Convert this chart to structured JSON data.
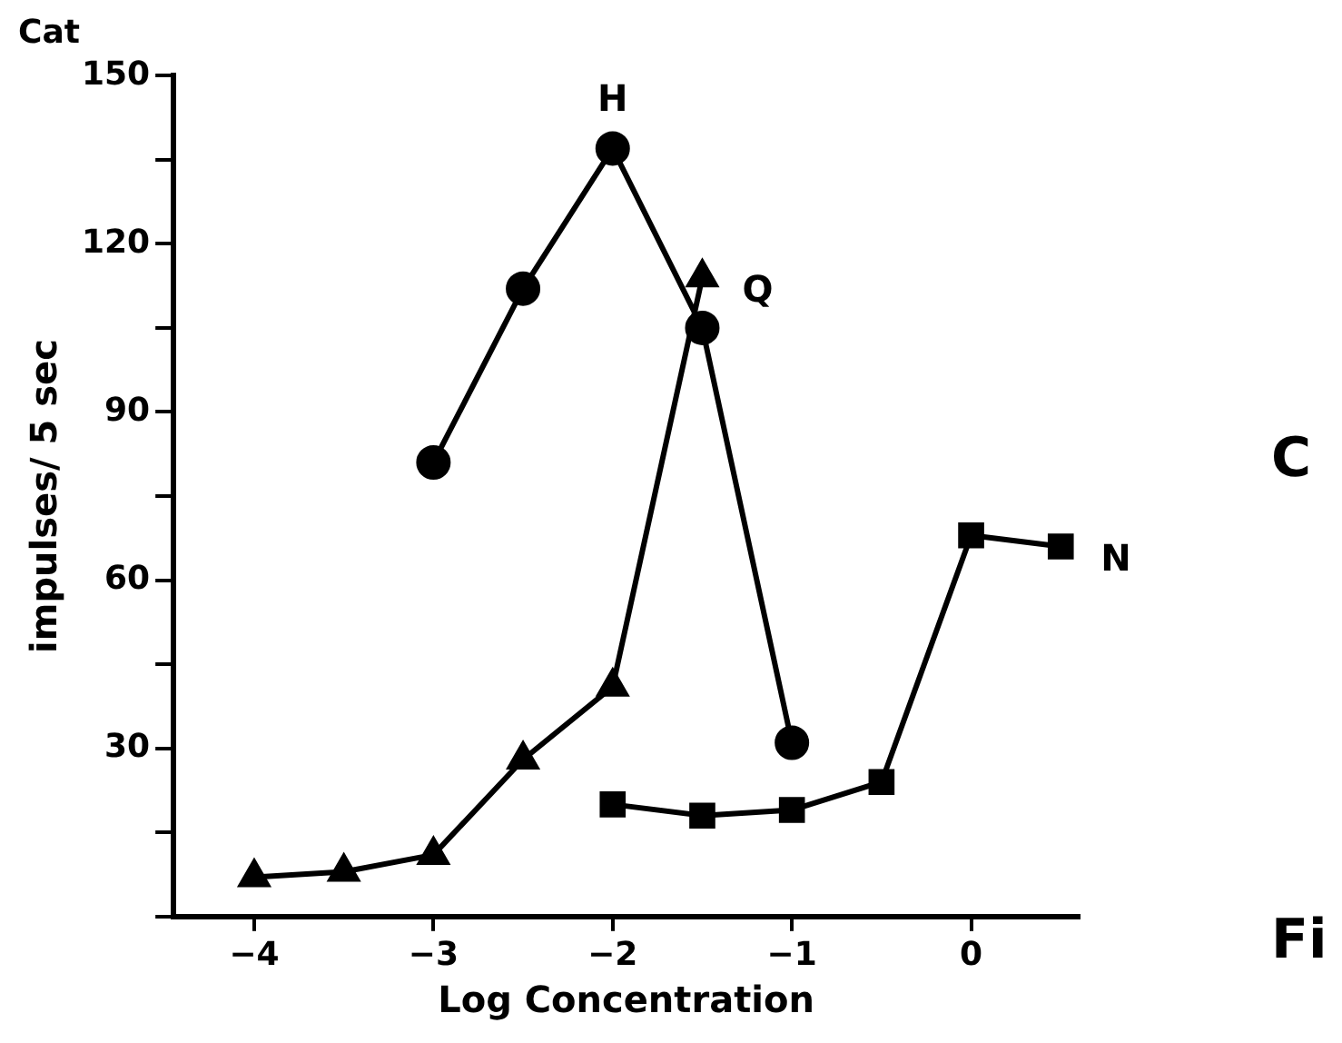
{
  "chart_data": {
    "type": "line",
    "title": "Cat",
    "xlabel": "Log Concentration",
    "ylabel": "impulses/ 5 sec",
    "xlim": [
      -4.45,
      0.6
    ],
    "xticks": [
      -4,
      -3,
      -2,
      -1,
      0
    ],
    "ylim": [
      0,
      150
    ],
    "yticks": [
      {
        "value": 0,
        "label": null
      },
      {
        "value": 15,
        "label": null
      },
      30,
      {
        "value": 45,
        "label": null
      },
      60,
      {
        "value": 75,
        "label": null
      },
      90,
      {
        "value": 105,
        "label": null
      },
      120,
      {
        "value": 135,
        "label": null
      },
      150
    ],
    "grid": false,
    "legend": false,
    "line_style": "solid",
    "series": [
      {
        "name": "H",
        "color": "#000000",
        "marker": "circle",
        "x": [
          -3,
          -2.5,
          -2,
          -1.5,
          -1
        ],
        "values": [
          81,
          112,
          137,
          105,
          31
        ]
      },
      {
        "name": "Q",
        "color": "#000000",
        "marker": "triangle",
        "x": [
          -4,
          -3.5,
          -3,
          -2.5,
          -2,
          -1.5
        ],
        "values": [
          7,
          8,
          11,
          28,
          41,
          114
        ]
      },
      {
        "name": "N",
        "color": "#000000",
        "marker": "square",
        "x": [
          -2,
          -1.5,
          -1,
          -0.5,
          0,
          0.5
        ],
        "values": [
          20,
          18,
          19,
          24,
          68,
          66
        ]
      }
    ],
    "annotations": [
      "C",
      "Fi"
    ]
  }
}
